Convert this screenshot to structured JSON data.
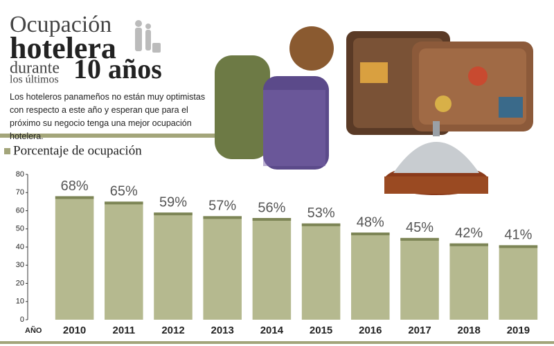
{
  "chart_data": {
    "type": "bar",
    "title_parts": [
      "Ocupación",
      "hotelera",
      "durante",
      "los últimos",
      "10 años"
    ],
    "description": "Los hoteleros panameños no están muy optimistas con respecto a este año y esperan que para el próximo su negocio tenga una mejor ocupación hotelera.",
    "y_label": "Porcentaje de ocupación",
    "x_label": "AÑO",
    "categories": [
      "2010",
      "2011",
      "2012",
      "2013",
      "2014",
      "2015",
      "2016",
      "2017",
      "2018",
      "2019"
    ],
    "values": [
      68,
      65,
      59,
      57,
      56,
      53,
      48,
      45,
      42,
      41
    ],
    "value_labels": [
      "68%",
      "65%",
      "59%",
      "57%",
      "56%",
      "53%",
      "48%",
      "45%",
      "42%",
      "41%"
    ],
    "color": "#b5b98f",
    "ylim": [
      0,
      80
    ],
    "yticks": [
      0,
      10,
      20,
      30,
      40,
      50,
      60,
      70,
      80
    ]
  }
}
